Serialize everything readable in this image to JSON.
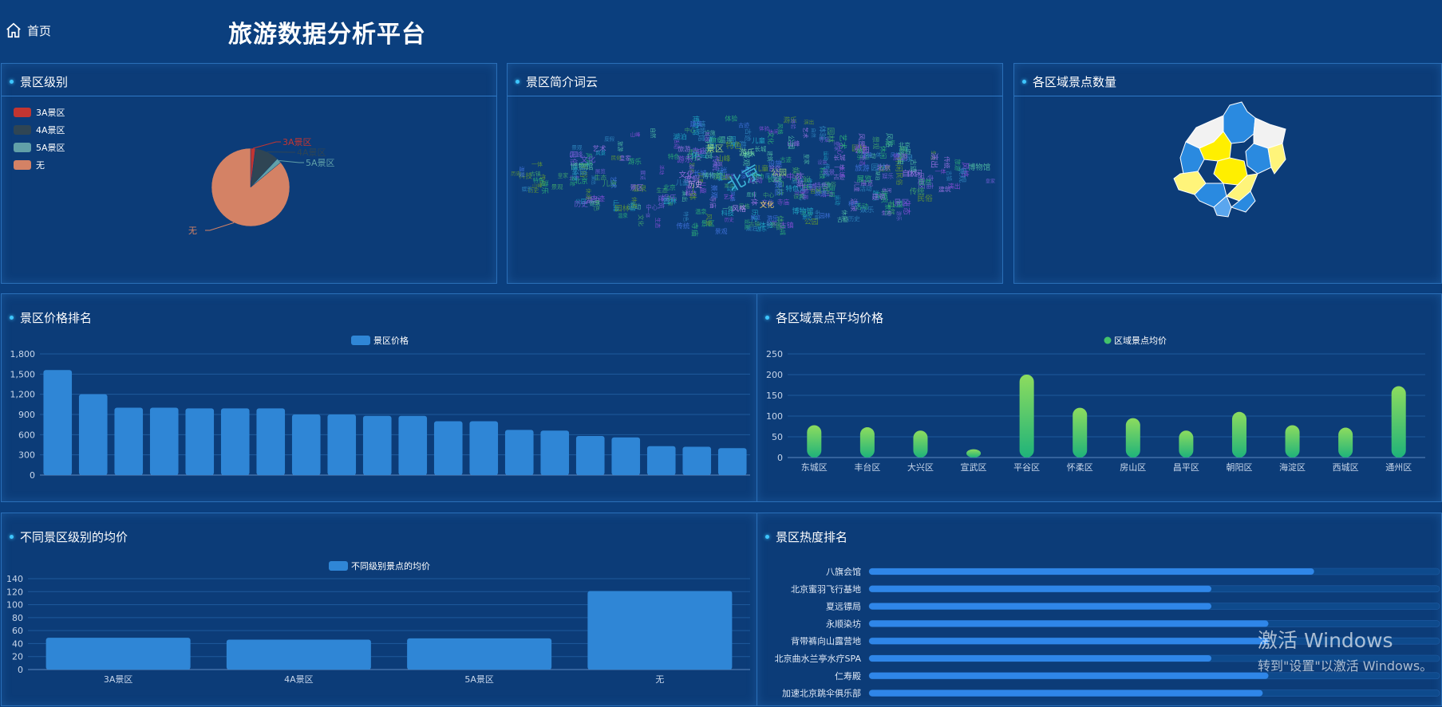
{
  "header": {
    "home_label": "首页",
    "title": "旅游数据分析平台"
  },
  "panels": {
    "level": "景区级别",
    "wordcloud": "景区简介词云",
    "map": "各区域景点数量",
    "price_rank": "景区价格排名",
    "area_avg": "各区域景点平均价格",
    "level_avg": "不同景区级别的均价",
    "heat_rank": "景区热度排名"
  },
  "level_legend": [
    {
      "label": "3A景区",
      "color": "#c23531"
    },
    {
      "label": "4A景区",
      "color": "#2f4554"
    },
    {
      "label": "5A景区",
      "color": "#61a0a8"
    },
    {
      "label": "无",
      "color": "#d48265"
    }
  ],
  "wordcloud_words": [
    "北京",
    "文化",
    "景区",
    "公园",
    "风格",
    "历史",
    "建筑",
    "游乐",
    "儿童",
    "一体",
    "体验",
    "旅游",
    "自然",
    "中心",
    "艺术",
    "博物馆",
    "园林",
    "古迹",
    "民俗",
    "休闲",
    "生态",
    "娱乐",
    "长城",
    "寺庙",
    "风景",
    "演出",
    "活动",
    "设施",
    "景观",
    "特色",
    "传统",
    "皇家",
    "展览",
    "科技",
    "运动",
    "温泉",
    "度假",
    "湖泊",
    "山峰",
    "古镇"
  ],
  "chart_data": [
    {
      "type": "pie",
      "slices": [
        {
          "label": "3A景区",
          "value": 2,
          "color": "#c23531"
        },
        {
          "label": "4A景区",
          "value": 10,
          "color": "#2f4554"
        },
        {
          "label": "5A景区",
          "value": 2,
          "color": "#61a0a8"
        },
        {
          "label": "无",
          "value": 86,
          "color": "#d48265"
        }
      ]
    },
    {
      "type": "bar",
      "legend": "景区价格",
      "ylim": [
        0,
        1800
      ],
      "yticks": [
        "0",
        "300",
        "600",
        "900",
        "1,200",
        "1,500",
        "1,800"
      ],
      "values": [
        1560,
        1200,
        1000,
        1000,
        990,
        990,
        990,
        900,
        900,
        880,
        880,
        800,
        800,
        670,
        660,
        580,
        560,
        430,
        420,
        400
      ],
      "color": "#2f86d6"
    },
    {
      "type": "bar",
      "legend": "区域景点均价",
      "ylim": [
        0,
        250
      ],
      "yticks": [
        "0",
        "50",
        "100",
        "150",
        "200",
        "250"
      ],
      "categories": [
        "东城区",
        "丰台区",
        "大兴区",
        "宣武区",
        "平谷区",
        "怀柔区",
        "房山区",
        "昌平区",
        "朝阳区",
        "海淀区",
        "西城区",
        "通州区"
      ],
      "values": [
        78,
        73,
        65,
        20,
        200,
        120,
        95,
        65,
        110,
        78,
        72,
        172
      ]
    },
    {
      "type": "bar",
      "legend": "不同级别景点的均价",
      "ylim": [
        0,
        140
      ],
      "yticks": [
        "0",
        "20",
        "40",
        "60",
        "80",
        "100",
        "120",
        "140"
      ],
      "categories": [
        "3A景区",
        "4A景区",
        "5A景区",
        "无"
      ],
      "values": [
        49,
        46,
        48,
        121
      ],
      "color": "#2f86d6"
    },
    {
      "type": "bar",
      "orientation": "horizontal",
      "categories": [
        "八旗会馆",
        "北京蜜羽飞行基地",
        "夏远镖局",
        "永顺染坊",
        "背带裤向山露营地",
        "北京曲水兰亭水疗SPA",
        "仁寿殿",
        "加速北京跳伞俱乐部"
      ],
      "values": [
        78,
        60,
        60,
        70,
        70,
        60,
        70,
        69
      ],
      "max": 100,
      "color": "#2f86e8"
    }
  ],
  "watermark": {
    "line1": "激活 Windows",
    "line2": "转到\"设置\"以激活 Windows。"
  }
}
